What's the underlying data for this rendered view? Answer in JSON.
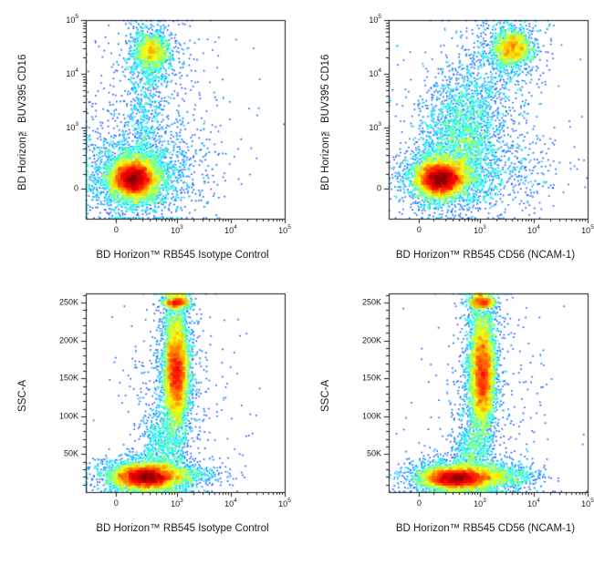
{
  "figure": {
    "background": "#ffffff",
    "axis_color": "#1a1a1a",
    "tick_color": "#1a1a1a"
  },
  "chart_data": {
    "type": "scatter",
    "subtype": "flow-cytometry-pseudocolor-density",
    "colormap": "jet",
    "legend": "none",
    "grid": false,
    "panels": [
      {
        "id": "cd16-vs-isotype",
        "xlabel": "BD Horizon™ RB545 Isotype Control",
        "ylabel": "BD Horizon™ BUV395 CD16",
        "x_scale": "logicle",
        "y_scale": "logicle",
        "x_range": [
          "-300",
          "100000"
        ],
        "y_range": [
          "-300",
          "100000"
        ],
        "x_ticks": [
          {
            "v": 0,
            "label": "0"
          },
          {
            "v": 1000,
            "label": "10^3"
          },
          {
            "v": 10000,
            "label": "10^4"
          },
          {
            "v": 100000,
            "label": "10^5"
          }
        ],
        "y_ticks": [
          {
            "v": 0,
            "label": "0"
          },
          {
            "v": 1000,
            "label": "10^3"
          },
          {
            "v": 10000,
            "label": "10^4"
          },
          {
            "v": 100000,
            "label": "10^5"
          }
        ],
        "populations": [
          {
            "name": "negative-main-core",
            "x": 0.24,
            "y": 0.2,
            "sx": 0.05,
            "sy": 0.04,
            "n": 4800
          },
          {
            "name": "negative-main-halo",
            "x": 0.25,
            "y": 0.21,
            "sx": 0.1,
            "sy": 0.085,
            "n": 2600
          },
          {
            "name": "negative-wide-scatter",
            "x": 0.28,
            "y": 0.26,
            "sx": 0.19,
            "sy": 0.15,
            "n": 800
          },
          {
            "name": "cd16-bright-core",
            "x": 0.33,
            "y": 0.84,
            "sx": 0.045,
            "sy": 0.05,
            "n": 1050
          },
          {
            "name": "cd16-bright-halo",
            "x": 0.33,
            "y": 0.82,
            "sx": 0.085,
            "sy": 0.1,
            "n": 480
          },
          {
            "name": "cd16-intermediate-bridge",
            "x": 0.3,
            "y": 0.55,
            "sx": 0.05,
            "sy": 0.16,
            "n": 420
          },
          {
            "name": "sparse-background",
            "x": 0.35,
            "y": 0.45,
            "sx": 0.22,
            "sy": 0.27,
            "n": 320
          }
        ]
      },
      {
        "id": "cd16-vs-cd56",
        "xlabel": "BD Horizon™ RB545 CD56 (NCAM-1)",
        "ylabel": "BD Horizon™ BUV395 CD16",
        "x_scale": "logicle",
        "y_scale": "logicle",
        "x_range": [
          "-300",
          "100000"
        ],
        "y_range": [
          "-300",
          "100000"
        ],
        "x_ticks": [
          {
            "v": 0,
            "label": "0"
          },
          {
            "v": 1000,
            "label": "10^3"
          },
          {
            "v": 10000,
            "label": "10^4"
          },
          {
            "v": 100000,
            "label": "10^5"
          }
        ],
        "y_ticks": [
          {
            "v": 0,
            "label": "0"
          },
          {
            "v": 1000,
            "label": "10^3"
          },
          {
            "v": 10000,
            "label": "10^4"
          },
          {
            "v": 100000,
            "label": "10^5"
          }
        ],
        "populations": [
          {
            "name": "negative-main-core",
            "x": 0.26,
            "y": 0.2,
            "sx": 0.055,
            "sy": 0.04,
            "n": 4600
          },
          {
            "name": "negative-main-halo",
            "x": 0.28,
            "y": 0.21,
            "sx": 0.11,
            "sy": 0.085,
            "n": 2300
          },
          {
            "name": "cd56-dim-population",
            "x": 0.37,
            "y": 0.44,
            "sx": 0.1,
            "sy": 0.13,
            "n": 1500
          },
          {
            "name": "cd16-cd56-double-positive-core",
            "x": 0.62,
            "y": 0.86,
            "sx": 0.05,
            "sy": 0.045,
            "n": 1300
          },
          {
            "name": "cd16-cd56-double-positive-halo",
            "x": 0.61,
            "y": 0.84,
            "sx": 0.09,
            "sy": 0.085,
            "n": 480
          },
          {
            "name": "bridge-population",
            "x": 0.46,
            "y": 0.62,
            "sx": 0.11,
            "sy": 0.13,
            "n": 450
          },
          {
            "name": "cd56-positive-low-cd16",
            "x": 0.55,
            "y": 0.24,
            "sx": 0.16,
            "sy": 0.1,
            "n": 420
          },
          {
            "name": "sparse-background",
            "x": 0.4,
            "y": 0.5,
            "sx": 0.24,
            "sy": 0.27,
            "n": 300
          }
        ]
      },
      {
        "id": "ssc-vs-isotype",
        "xlabel": "BD Horizon™ RB545 Isotype Control",
        "ylabel": "SSC-A",
        "x_scale": "logicle",
        "y_scale": "linear",
        "x_range": [
          "-300",
          "100000"
        ],
        "y_range": [
          "0",
          "262144"
        ],
        "x_ticks": [
          {
            "v": 0,
            "label": "0"
          },
          {
            "v": 1000,
            "label": "10^3"
          },
          {
            "v": 10000,
            "label": "10^4"
          },
          {
            "v": 100000,
            "label": "10^5"
          }
        ],
        "y_ticks": [
          {
            "v": 50000,
            "label": "50K"
          },
          {
            "v": 100000,
            "label": "100K"
          },
          {
            "v": 150000,
            "label": "150K"
          },
          {
            "v": 200000,
            "label": "200K"
          },
          {
            "v": 250000,
            "label": "250K"
          }
        ],
        "populations": [
          {
            "name": "lymphocyte-low-ssc-core",
            "x": 0.3,
            "y": 0.075,
            "sx": 0.075,
            "sy": 0.028,
            "n": 4600
          },
          {
            "name": "lymphocyte-low-ssc-halo",
            "x": 0.31,
            "y": 0.085,
            "sx": 0.125,
            "sy": 0.05,
            "n": 1700
          },
          {
            "name": "granulocyte-column",
            "x": 0.455,
            "y": 0.62,
            "sx": 0.032,
            "sy": 0.17,
            "n": 3600
          },
          {
            "name": "granulocyte-dense-mid",
            "x": 0.455,
            "y": 0.6,
            "sx": 0.027,
            "sy": 0.085,
            "n": 1500
          },
          {
            "name": "top-pileup",
            "x": 0.46,
            "y": 0.955,
            "sx": 0.034,
            "sy": 0.015,
            "n": 650
          },
          {
            "name": "granulocyte-halo",
            "x": 0.45,
            "y": 0.6,
            "sx": 0.06,
            "sy": 0.24,
            "n": 850
          },
          {
            "name": "monocyte-bridge",
            "x": 0.38,
            "y": 0.24,
            "sx": 0.055,
            "sy": 0.09,
            "n": 480
          },
          {
            "name": "low-ssc-right-tail",
            "x": 0.52,
            "y": 0.08,
            "sx": 0.09,
            "sy": 0.03,
            "n": 300
          },
          {
            "name": "sparse-background",
            "x": 0.45,
            "y": 0.4,
            "sx": 0.16,
            "sy": 0.28,
            "n": 300
          }
        ]
      },
      {
        "id": "ssc-vs-cd56",
        "xlabel": "BD Horizon™ RB545 CD56 (NCAM-1)",
        "ylabel": "SSC-A",
        "x_scale": "logicle",
        "y_scale": "linear",
        "x_range": [
          "-300",
          "100000"
        ],
        "y_range": [
          "0",
          "262144"
        ],
        "x_ticks": [
          {
            "v": 0,
            "label": "0"
          },
          {
            "v": 1000,
            "label": "10^3"
          },
          {
            "v": 10000,
            "label": "10^4"
          },
          {
            "v": 100000,
            "label": "10^5"
          }
        ],
        "y_ticks": [
          {
            "v": 50000,
            "label": "50K"
          },
          {
            "v": 100000,
            "label": "100K"
          },
          {
            "v": 150000,
            "label": "150K"
          },
          {
            "v": 200000,
            "label": "200K"
          },
          {
            "v": 250000,
            "label": "250K"
          }
        ],
        "populations": [
          {
            "name": "lymphocyte-low-ssc-core",
            "x": 0.34,
            "y": 0.07,
            "sx": 0.08,
            "sy": 0.026,
            "n": 4400
          },
          {
            "name": "lymphocyte-low-ssc-halo",
            "x": 0.35,
            "y": 0.08,
            "sx": 0.13,
            "sy": 0.048,
            "n": 1600
          },
          {
            "name": "nk-cd56-positive-tail",
            "x": 0.56,
            "y": 0.08,
            "sx": 0.1,
            "sy": 0.032,
            "n": 700
          },
          {
            "name": "granulocyte-column",
            "x": 0.47,
            "y": 0.62,
            "sx": 0.032,
            "sy": 0.17,
            "n": 3600
          },
          {
            "name": "granulocyte-dense-mid",
            "x": 0.47,
            "y": 0.57,
            "sx": 0.028,
            "sy": 0.09,
            "n": 1400
          },
          {
            "name": "top-pileup",
            "x": 0.47,
            "y": 0.955,
            "sx": 0.034,
            "sy": 0.015,
            "n": 650
          },
          {
            "name": "granulocyte-halo",
            "x": 0.465,
            "y": 0.6,
            "sx": 0.06,
            "sy": 0.24,
            "n": 800
          },
          {
            "name": "monocyte-bridge",
            "x": 0.41,
            "y": 0.22,
            "sx": 0.05,
            "sy": 0.08,
            "n": 430
          },
          {
            "name": "sparse-background",
            "x": 0.5,
            "y": 0.4,
            "sx": 0.17,
            "sy": 0.28,
            "n": 300
          }
        ]
      }
    ]
  }
}
